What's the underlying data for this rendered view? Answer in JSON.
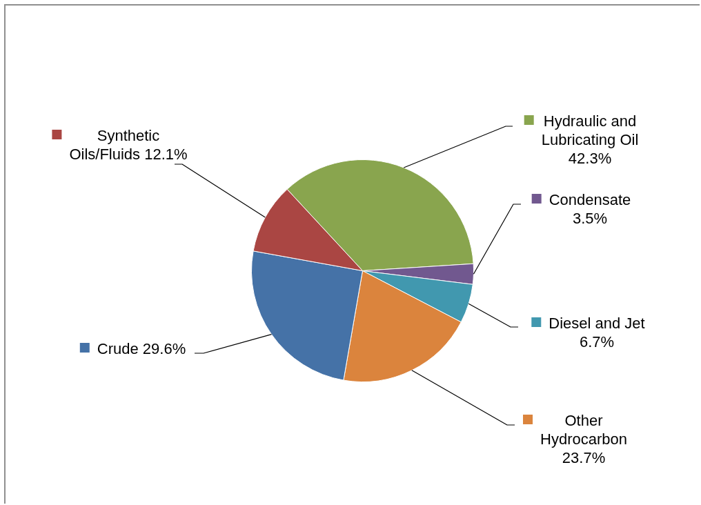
{
  "chart_data": {
    "type": "pie",
    "categories": [
      "Hydraulic and Lubricating Oil",
      "Condensate",
      "Diesel and Jet",
      "Other Hydrocarbon",
      "Crude",
      "Synthetic Oils/Fluids"
    ],
    "values": [
      42.3,
      3.5,
      6.7,
      23.7,
      29.6,
      12.1
    ],
    "value_labels": [
      "42.3%",
      "3.5%",
      "6.7%",
      "23.7%",
      "29.6%",
      "12.1%"
    ],
    "colors": [
      "#89a54e",
      "#71588f",
      "#4198af",
      "#db843d",
      "#4572a7",
      "#aa4643"
    ],
    "legend": true
  }
}
